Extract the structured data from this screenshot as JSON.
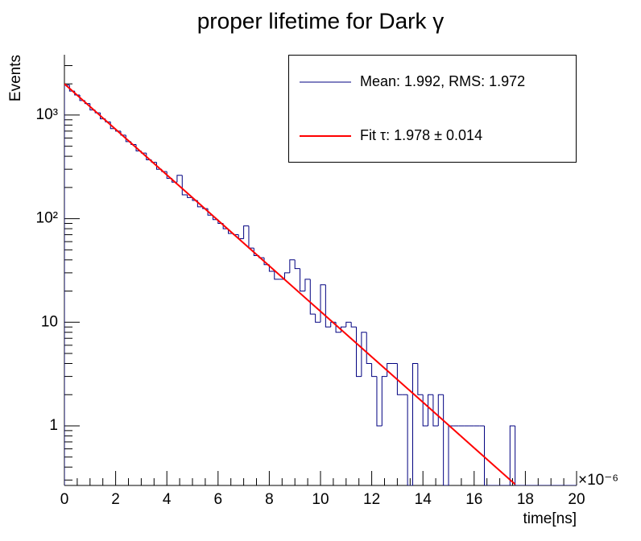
{
  "chart_data": {
    "type": "histogram",
    "title": "proper lifetime for Dark γ",
    "x_label": "time[ns]",
    "x_exponent": "×10⁻⁶",
    "y_label": "Events",
    "log_y": true,
    "bins": [
      0,
      0.2,
      0.4,
      0.6,
      0.8,
      1,
      1.2,
      1.4,
      1.6,
      1.8,
      2,
      2.2,
      2.4,
      2.6,
      2.8,
      3,
      3.2,
      3.4,
      3.6,
      3.8,
      4,
      4.2,
      4.4,
      4.6,
      4.8,
      5,
      5.2,
      5.4,
      5.6,
      5.8,
      6,
      6.2,
      6.4,
      6.6,
      6.8,
      7,
      7.2,
      7.4,
      7.6,
      7.8,
      8,
      8.2,
      8.4,
      8.6,
      8.8,
      9,
      9.2,
      9.4,
      9.6,
      9.8,
      10,
      10.2,
      10.4,
      10.6,
      10.8,
      11,
      11.2,
      11.4,
      11.6,
      11.8,
      12,
      12.2,
      12.4,
      12.6,
      12.8,
      13,
      13.2,
      13.4,
      13.6,
      13.8,
      14,
      14.2,
      14.4,
      14.6,
      14.8,
      15,
      15.2,
      15.4,
      15.6,
      15.8,
      16,
      16.2,
      16.4,
      16.6,
      16.8,
      17,
      17.2,
      17.4,
      17.6,
      17.8,
      18,
      18.2,
      18.4,
      18.6,
      18.8,
      19,
      19.2,
      19.4,
      19.6,
      19.8,
      20
    ],
    "series": [
      {
        "name": "Mean: 1.992, RMS: 1.972",
        "color": "#000080",
        "values": [
          1950,
          1705,
          1560,
          1380,
          1290,
          1120,
          1050,
          920,
          860,
          740,
          700,
          640,
          555,
          520,
          450,
          430,
          370,
          350,
          300,
          285,
          245,
          225,
          262,
          170,
          160,
          150,
          130,
          125,
          108,
          98,
          90,
          80,
          72,
          70,
          64,
          85,
          52,
          44,
          42,
          36,
          31,
          26,
          26,
          30,
          40,
          33,
          20,
          26,
          12,
          10,
          23,
          9,
          10,
          8,
          9,
          10,
          9,
          3,
          8,
          4,
          3,
          1,
          3,
          4,
          4,
          2,
          2,
          0,
          4,
          2,
          1,
          2,
          1,
          2,
          0,
          1,
          1,
          1,
          1,
          1,
          1,
          1,
          0,
          0,
          0,
          0,
          0,
          1,
          0,
          0,
          0,
          0,
          0,
          0,
          0,
          0,
          0,
          0,
          0,
          0
        ]
      },
      {
        "name": "Fit τ: 1.978 ± 0.014",
        "color": "#ff0000",
        "x": [
          0,
          2,
          4,
          6,
          8,
          10,
          12,
          14,
          16,
          17.6
        ],
        "values": [
          2000,
          727.6,
          264.7,
          96.3,
          35.0,
          12.74,
          4.64,
          1.69,
          0.613,
          0.273
        ]
      }
    ],
    "xlim": [
      0,
      20
    ],
    "xticks": [
      0,
      2,
      4,
      6,
      8,
      10,
      12,
      14,
      16,
      18,
      20
    ],
    "ylim": [
      0.266,
      3820
    ],
    "yticks": [
      1,
      10,
      {
        "value": 100,
        "label": "10²"
      },
      {
        "value": 1000,
        "label": "10³"
      }
    ],
    "legend": "upper right"
  }
}
